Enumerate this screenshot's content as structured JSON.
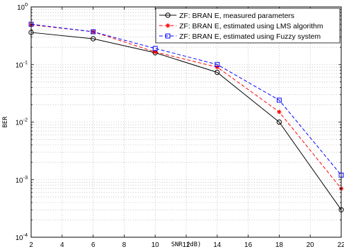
{
  "chart_data": {
    "type": "line",
    "xlabel": "SNR (dB)",
    "ylabel": "BER",
    "xlim": [
      2,
      22
    ],
    "ylim": [
      0.0001,
      1
    ],
    "yscale": "log",
    "grid": true,
    "legend_position": "top-right",
    "x_ticks": [
      "2",
      "4",
      "6",
      "8",
      "10",
      "12",
      "14",
      "16",
      "18",
      "20",
      "22"
    ],
    "y_ticks": [
      {
        "base": "10",
        "exp": "0",
        "value": 1
      },
      {
        "base": "10",
        "exp": "-1",
        "value": 0.1
      },
      {
        "base": "10",
        "exp": "-2",
        "value": 0.01
      },
      {
        "base": "10",
        "exp": "-3",
        "value": 0.001
      },
      {
        "base": "10",
        "exp": "-4",
        "value": 0.0001
      }
    ],
    "x": [
      2,
      6,
      10,
      14,
      18,
      22
    ],
    "series": [
      {
        "name": "ZF: BRAN E, measured parameters",
        "values": [
          0.36,
          0.28,
          0.16,
          0.073,
          0.01,
          0.0003
        ],
        "color": "#000000",
        "line_style": "solid",
        "marker": "circle"
      },
      {
        "name": "ZF: BRAN E, estimated using LMS algorithm",
        "values": [
          0.49,
          0.37,
          0.165,
          0.09,
          0.015,
          0.0007
        ],
        "color": "#ff0000",
        "line_style": "dashed",
        "marker": "star"
      },
      {
        "name": "ZF: BRAN E, estimated using Fuzzy system",
        "values": [
          0.5,
          0.37,
          0.19,
          0.1,
          0.024,
          0.0012
        ],
        "color": "#0000ff",
        "line_style": "dashed",
        "marker": "square"
      }
    ]
  }
}
